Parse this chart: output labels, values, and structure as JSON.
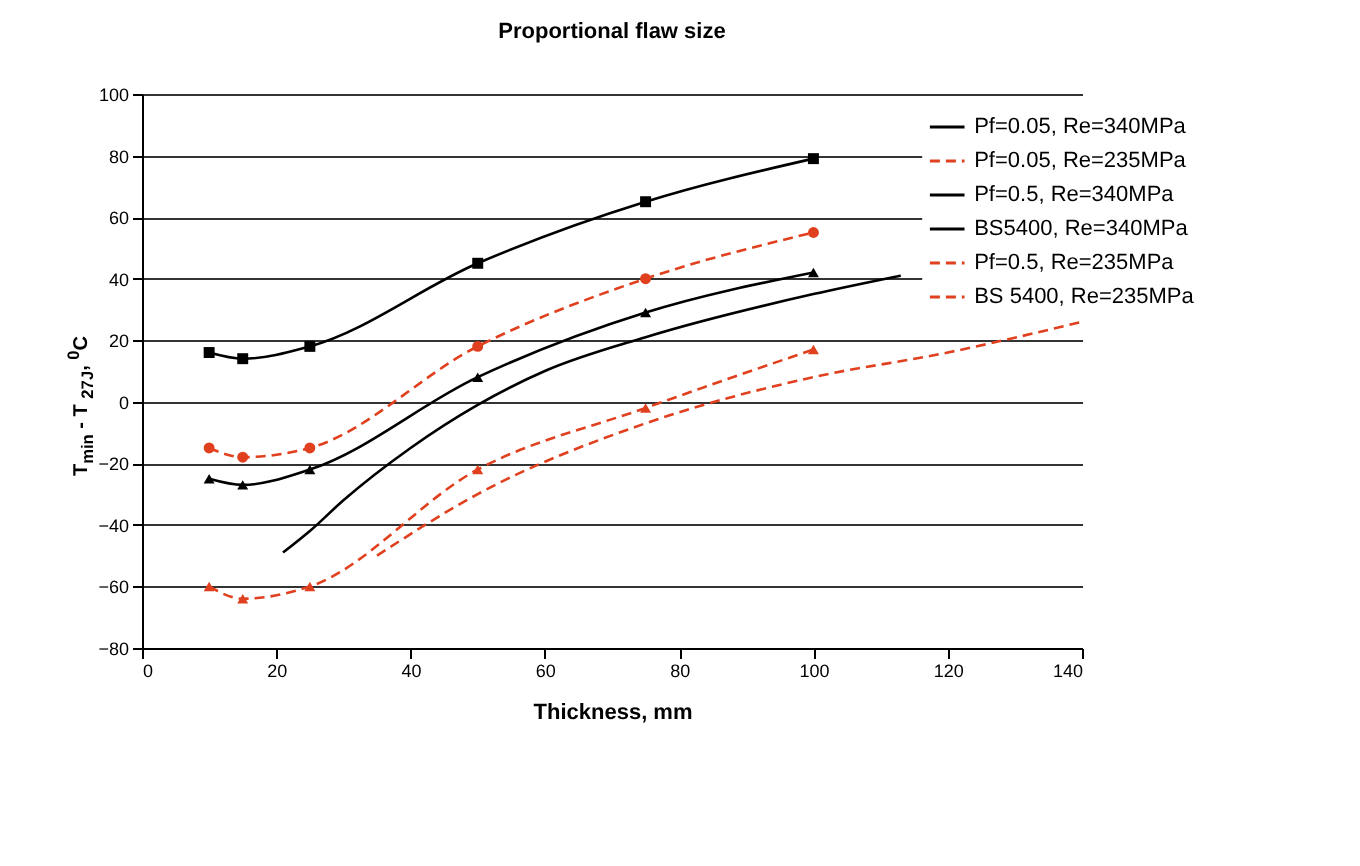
{
  "chart_data": {
    "type": "line",
    "title": "Proportional flaw size",
    "xlabel": "Thickness, mm",
    "ylabel": "T$_{min}$ - T $_{27J}$, $^{0}$C",
    "xlim": [
      0,
      140
    ],
    "xticks": [
      0,
      20,
      40,
      60,
      80,
      100,
      120,
      140
    ],
    "ylim": [
      -80,
      100
    ],
    "yticks": [
      -80,
      -60,
      -40,
      -20,
      0,
      20,
      40,
      60,
      80,
      100
    ],
    "grid": "y",
    "legend": "top right",
    "series": [
      {
        "name": "Pf=0.05, Re=340MPa",
        "color": "#000000",
        "marker": "square",
        "line_style": "solid",
        "x": [
          10,
          15,
          25,
          50,
          75,
          100
        ],
        "values": [
          16,
          14,
          18,
          45,
          65,
          79
        ]
      },
      {
        "name": "Pf=0.05, Re=235MPa",
        "color": "#e0401e",
        "marker": "circle",
        "line_style": "dashed",
        "x": [
          10,
          15,
          25,
          50,
          75,
          100
        ],
        "values": [
          -15,
          -18,
          -15,
          18,
          40,
          55
        ]
      },
      {
        "name": "Pf=0.5, Re=340MPa",
        "color": "#000000",
        "marker": "triangle",
        "line_style": "solid",
        "x": [
          10,
          15,
          25,
          50,
          75,
          100
        ],
        "values": [
          -25,
          -27,
          -22,
          8,
          29,
          42
        ]
      },
      {
        "name": "BS5400, Re=340MPa",
        "color": "#000000",
        "marker": "none",
        "line_style": "solid",
        "x": [
          21,
          25,
          30,
          40,
          50,
          60,
          75,
          100,
          113
        ],
        "values": [
          -49,
          -42,
          -32,
          -15,
          -1,
          10,
          21,
          35,
          41
        ]
      },
      {
        "name": "Pf=0.5, Re=235MPa",
        "color": "#e0401e",
        "marker": "triangle",
        "line_style": "dashed",
        "x": [
          10,
          15,
          25,
          50,
          75,
          100
        ],
        "values": [
          -60,
          -64,
          -60,
          -22,
          -2,
          17
        ]
      },
      {
        "name": "BS 5400, Re=235MPa",
        "color": "#e0401e",
        "marker": "none",
        "line_style": "dashed",
        "x": [
          35,
          50,
          75,
          100,
          120,
          140
        ],
        "values": [
          -50,
          -30,
          -7,
          8,
          16,
          26
        ]
      }
    ]
  }
}
